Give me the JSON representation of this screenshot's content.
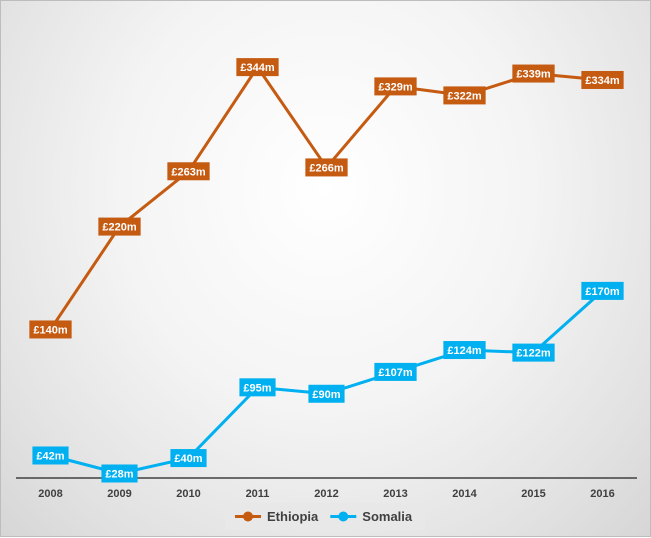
{
  "chart_data": {
    "type": "line",
    "title": "",
    "xlabel": "",
    "ylabel": "",
    "x": [
      "2008",
      "2009",
      "2010",
      "2011",
      "2012",
      "2013",
      "2014",
      "2015",
      "2016"
    ],
    "ylim": [
      0,
      360
    ],
    "grid": false,
    "legend_position": "bottom",
    "series": [
      {
        "name": "Ethiopia",
        "color": "#c55a11",
        "values": [
          140,
          220,
          263,
          344,
          266,
          329,
          322,
          339,
          334
        ],
        "labels": [
          "£140m",
          "£220m",
          "£263m",
          "£344m",
          "£266m",
          "£329m",
          "£322m",
          "£339m",
          "£334m"
        ]
      },
      {
        "name": "Somalia",
        "color": "#00b0f0",
        "values": [
          42,
          28,
          40,
          95,
          90,
          107,
          124,
          122,
          170
        ],
        "labels": [
          "£42m",
          "£28m",
          "£40m",
          "£95m",
          "£90m",
          "£107m",
          "£124m",
          "£122m",
          "£170m"
        ]
      }
    ]
  }
}
